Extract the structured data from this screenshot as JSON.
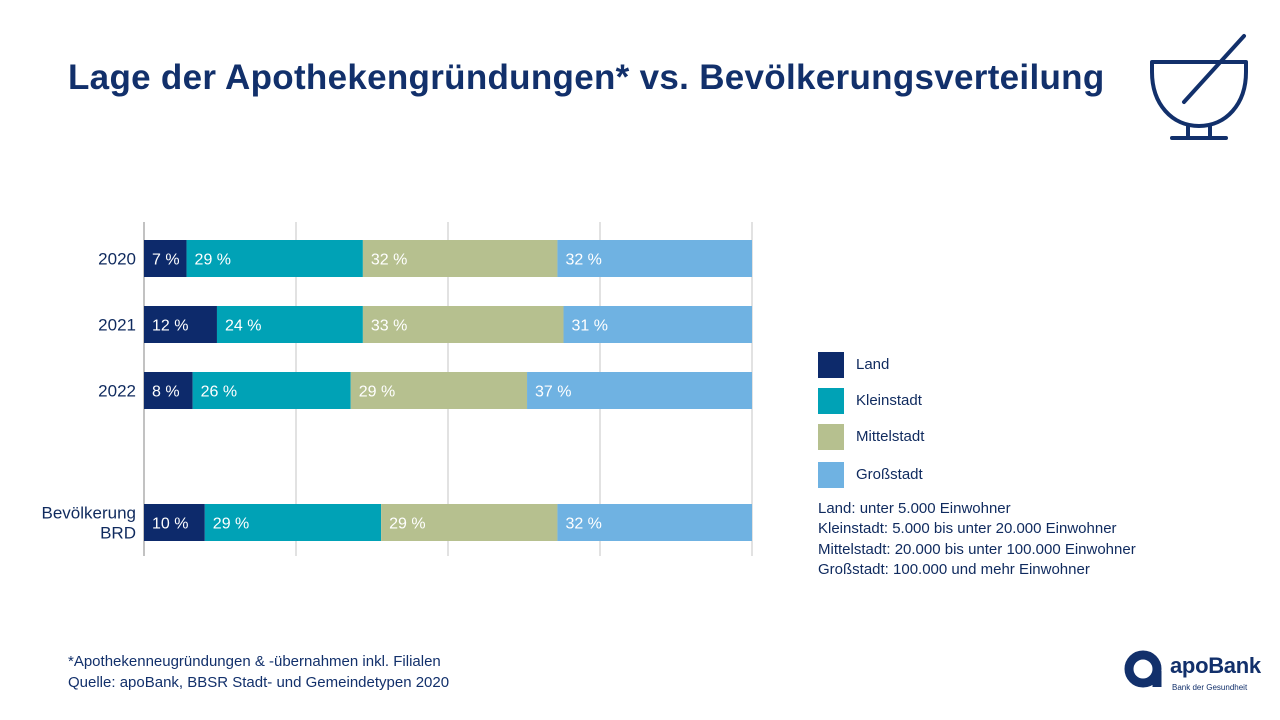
{
  "title": "Lage der Apothekengründungen* vs. Bevölkerungsverteilung",
  "chart_data": {
    "type": "bar",
    "orientation": "horizontal",
    "stacked": true,
    "categories": [
      "2020",
      "2021",
      "2022",
      "Bevölkerung BRD"
    ],
    "category_lines": [
      [
        "2020"
      ],
      [
        "2021"
      ],
      [
        "2022"
      ],
      [
        "Bevölkerung",
        "BRD"
      ]
    ],
    "series": [
      {
        "name": "Land",
        "color": "#0d2a6b",
        "values": [
          7,
          12,
          8,
          10
        ],
        "labels": [
          "7 %",
          "12 %",
          "8 %",
          "10 %"
        ]
      },
      {
        "name": "Kleinstadt",
        "color": "#00a2b6",
        "values": [
          29,
          24,
          26,
          29
        ],
        "labels": [
          "29 %",
          "24 %",
          "26 %",
          "29 %"
        ]
      },
      {
        "name": "Mittelstadt",
        "color": "#b6c08f",
        "values": [
          32,
          33,
          29,
          29
        ],
        "labels": [
          "32 %",
          "33 %",
          "29 %",
          "29 %"
        ]
      },
      {
        "name": "Großstadt",
        "color": "#6fb2e2",
        "values": [
          32,
          31,
          37,
          32
        ],
        "labels": [
          "32 %",
          "31 %",
          "37 %",
          "32 %"
        ]
      }
    ],
    "xlim": [
      0,
      100
    ],
    "grid": true,
    "legend_position": "right"
  },
  "legend": [
    {
      "label": "Land",
      "color": "#0d2a6b"
    },
    {
      "label": "Kleinstadt",
      "color": "#00a2b6"
    },
    {
      "label": "Mittelstadt",
      "color": "#b6c08f"
    },
    {
      "label": "Großstadt",
      "color": "#6fb2e2"
    }
  ],
  "definitions": [
    "Land: unter 5.000 Einwohner",
    "Kleinstadt: 5.000 bis unter 20.000 Einwohner",
    "Mittelstadt: 20.000 bis unter 100.000 Einwohner",
    "Großstadt: 100.000 und mehr Einwohner"
  ],
  "footnote": {
    "line1": "*Apothekenneugründungen & -übernahmen inkl. Filialen",
    "line2": "Quelle: apoBank, BBSR Stadt- und Gemeindetypen 2020"
  },
  "logo": {
    "name": "apoBank",
    "tagline": "Bank der Gesundheit"
  },
  "icon": "mortar-and-pestle-icon"
}
